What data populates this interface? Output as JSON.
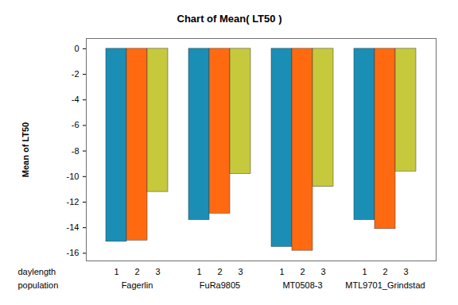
{
  "chart_data": {
    "type": "bar",
    "title": "Chart of Mean( LT50 )",
    "y_label": "Mean of LT50",
    "x_labels": [
      "daylength",
      "population"
    ],
    "categories": [
      "Fagerlin",
      "FuRa9805",
      "MT0508-3",
      "MTL9701_Grindstad"
    ],
    "series": [
      {
        "name": "1",
        "color": "#1B8EB5",
        "values": [
          -15.1,
          -13.4,
          -15.5,
          -13.4
        ]
      },
      {
        "name": "2",
        "color": "#FF6A10",
        "values": [
          -15.0,
          -12.9,
          -15.8,
          -14.1
        ]
      },
      {
        "name": "3",
        "color": "#C6C93C",
        "values": [
          -11.2,
          -9.8,
          -10.8,
          -9.6
        ]
      }
    ],
    "ylim": [
      -16.6,
      0.8
    ],
    "yticks": [
      -16,
      -14,
      -12,
      -10,
      -8,
      -6,
      -4,
      -2,
      0
    ],
    "grid": false
  }
}
